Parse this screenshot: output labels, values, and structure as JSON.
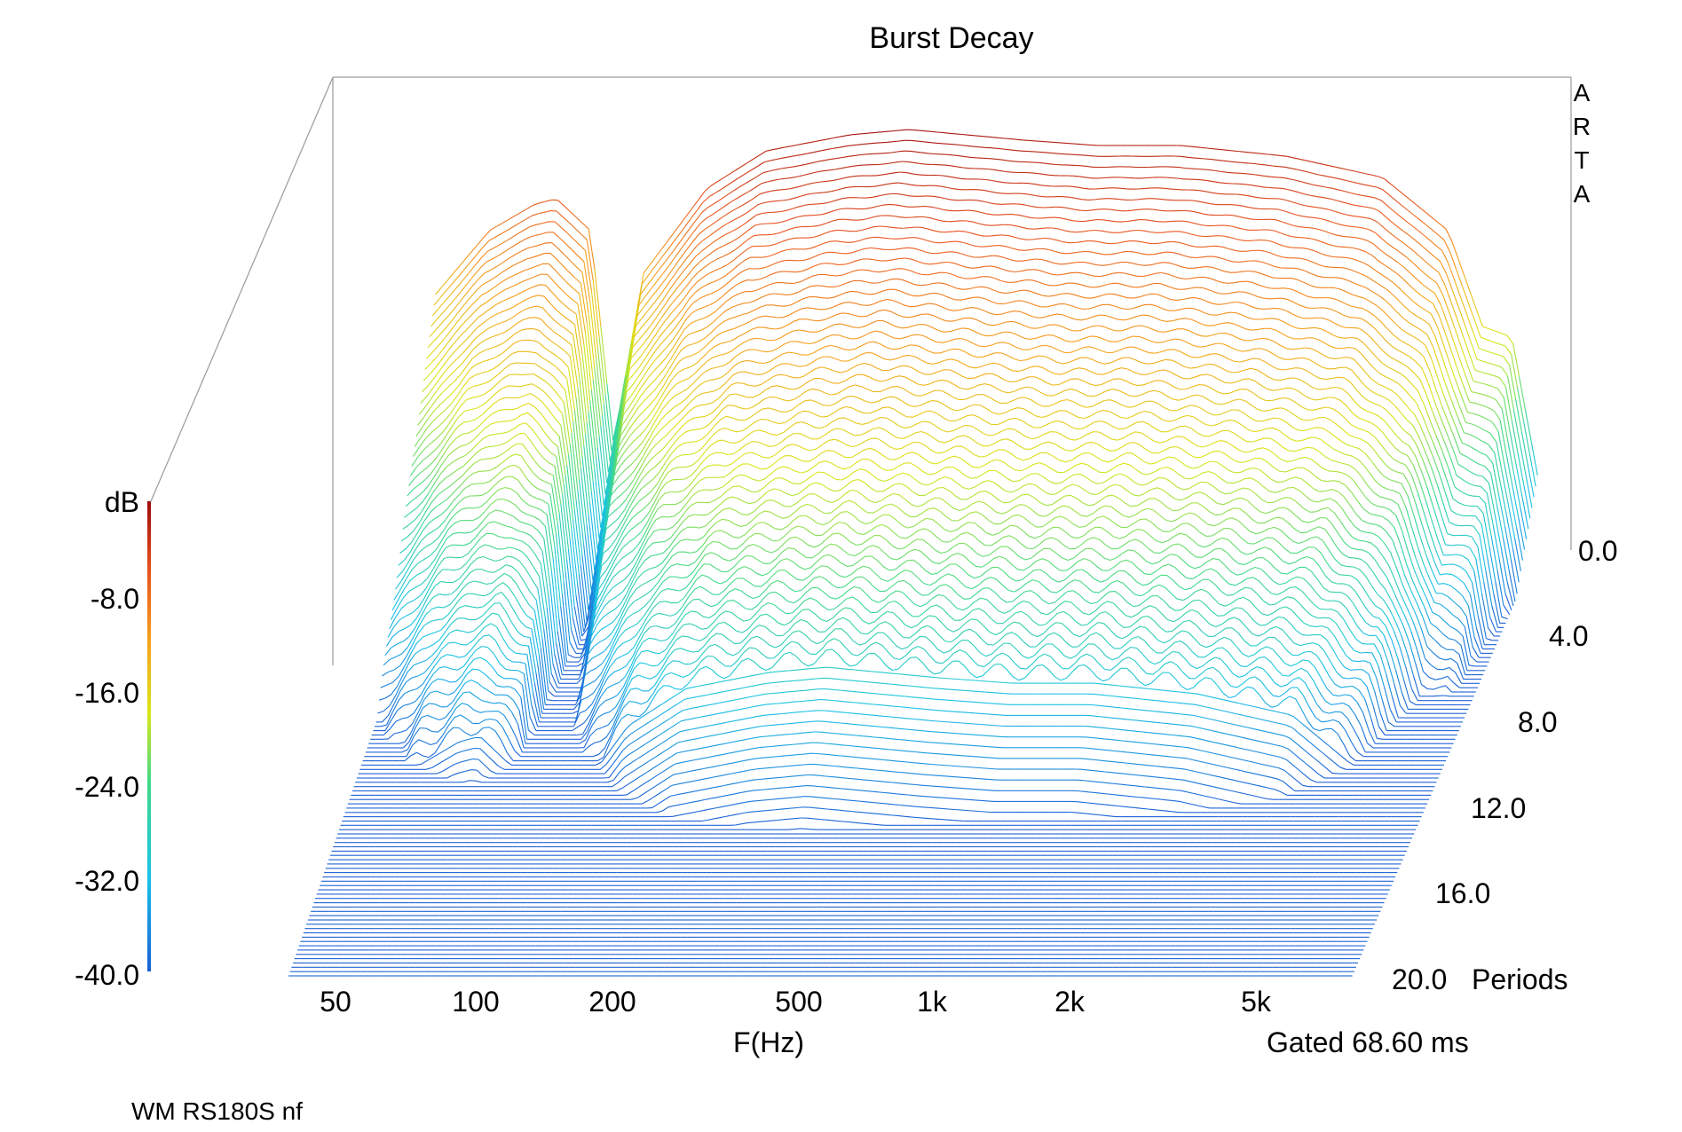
{
  "chart_data": {
    "type": "waterfall",
    "title": "Burst Decay",
    "watermark_letters": [
      "A",
      "R",
      "T",
      "A"
    ],
    "xlabel": "F(Hz)",
    "x_tick_labels": [
      "50",
      "100",
      "200",
      "500",
      "1k",
      "2k",
      "5k"
    ],
    "x_tick_values": [
      50,
      100,
      200,
      500,
      1000,
      2000,
      5000
    ],
    "x_range_hz": [
      20,
      10000
    ],
    "x_scale": "log",
    "z_axis_label_suffix": "Periods",
    "z_tick_labels": [
      "0.0",
      "4.0",
      "8.0",
      "12.0",
      "16.0",
      "20.0"
    ],
    "z_tick_values": [
      0,
      4,
      8,
      12,
      16,
      20
    ],
    "z_range_periods": [
      0,
      20
    ],
    "colorbar_label": "dB",
    "colorbar_tick_labels": [
      "-8.0",
      "-16.0",
      "-24.0",
      "-32.0",
      "-40.0"
    ],
    "colorbar_tick_values": [
      -8,
      -16,
      -24,
      -32,
      -40
    ],
    "db_range": [
      -40,
      0
    ],
    "gate_note": "Gated 68.60 ms",
    "footer_note": "WM RS180S nf",
    "colormap": [
      "#1a5fd6",
      "#19c2e6",
      "#3fd98a",
      "#d9e619",
      "#f7a21a",
      "#e8531f",
      "#9e0b0b"
    ],
    "front_slice_profile_db": [
      {
        "hz": 40,
        "db": -16
      },
      {
        "hz": 52,
        "db": -10
      },
      {
        "hz": 65,
        "db": -7.5
      },
      {
        "hz": 72,
        "db": -7
      },
      {
        "hz": 85,
        "db": -10
      },
      {
        "hz": 95,
        "db": -30
      },
      {
        "hz": 110,
        "db": -14
      },
      {
        "hz": 150,
        "db": -6
      },
      {
        "hz": 200,
        "db": -2.5
      },
      {
        "hz": 300,
        "db": -1
      },
      {
        "hz": 400,
        "db": -0.5
      },
      {
        "hz": 700,
        "db": -1.5
      },
      {
        "hz": 1000,
        "db": -2
      },
      {
        "hz": 1500,
        "db": -2
      },
      {
        "hz": 2500,
        "db": -3
      },
      {
        "hz": 4000,
        "db": -5
      },
      {
        "hz": 5500,
        "db": -10
      },
      {
        "hz": 6500,
        "db": -19
      },
      {
        "hz": 7500,
        "db": -20
      },
      {
        "hz": 8500,
        "db": -33
      }
    ],
    "slice_count": 100
  }
}
